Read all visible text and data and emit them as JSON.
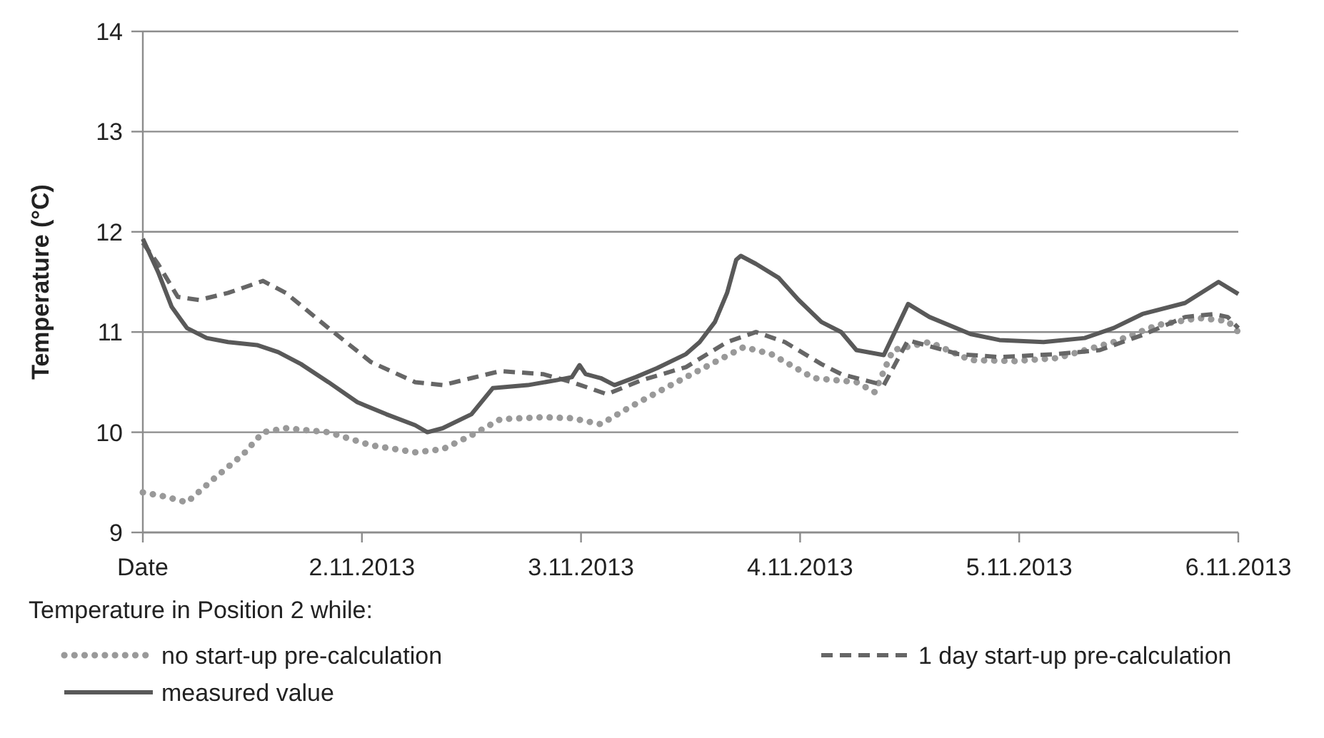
{
  "chart_data": {
    "type": "line",
    "ylabel": "Temperature (°C)",
    "legend_title": "Temperature in Position 2 while:",
    "legend": "bottom",
    "grid": "y",
    "marker": "none",
    "xlim": [
      "2013-11-01",
      "2013-11-06"
    ],
    "xticks": [
      {
        "value": "2013-11-01",
        "label": "Date"
      },
      {
        "value": "2013-11-02",
        "label": "2.11.2013"
      },
      {
        "value": "2013-11-03",
        "label": "3.11.2013"
      },
      {
        "value": "2013-11-04",
        "label": "4.11.2013"
      },
      {
        "value": "2013-11-05",
        "label": "5.11.2013"
      },
      {
        "value": "2013-11-06",
        "label": "6.11.2013"
      }
    ],
    "ylim": [
      9,
      14
    ],
    "yticks": [
      9,
      10,
      11,
      12,
      13,
      14
    ],
    "series": [
      {
        "name": "no start-up pre-calculation",
        "color": "#999999",
        "line_style": "dotted",
        "x": [
          "2013-11-01T00:00",
          "2013-11-01T02:20",
          "2013-11-01T04:50",
          "2013-11-01T07:50",
          "2013-11-01T11:00",
          "2013-11-01T13:10",
          "2013-11-01T15:40",
          "2013-11-01T20:20",
          "2013-11-02T01:00",
          "2013-11-02T05:50",
          "2013-11-02T08:50",
          "2013-11-02T12:00",
          "2013-11-02T15:10",
          "2013-11-02T19:50",
          "2013-11-02T23:00",
          "2013-11-03T02:10",
          "2013-11-03T05:20",
          "2013-11-03T09:50",
          "2013-11-03T14:40",
          "2013-11-03T17:50",
          "2013-11-03T20:50",
          "2013-11-04T01:30",
          "2013-11-04T06:10",
          "2013-11-04T08:10",
          "2013-11-04T10:10",
          "2013-11-04T14:10",
          "2013-11-04T18:40",
          "2013-11-04T23:30",
          "2013-11-05T04:10",
          "2013-11-05T10:20",
          "2013-11-05T15:10",
          "2013-11-05T19:40",
          "2013-11-05T22:50",
          "2013-11-06T00:00"
        ],
        "values": [
          9.4,
          9.36,
          9.3,
          9.54,
          9.78,
          10.0,
          10.04,
          10.0,
          9.87,
          9.8,
          9.83,
          9.97,
          10.13,
          10.15,
          10.14,
          10.08,
          10.25,
          10.47,
          10.7,
          10.85,
          10.78,
          10.54,
          10.5,
          10.4,
          10.82,
          10.9,
          10.72,
          10.71,
          10.74,
          10.9,
          11.07,
          11.14,
          11.11,
          11.0
        ]
      },
      {
        "name": "1 day start-up pre-calculation",
        "color": "#666666",
        "line_style": "dashed",
        "x": [
          "2013-11-01T00:00",
          "2013-11-01T01:40",
          "2013-11-01T03:50",
          "2013-11-01T06:10",
          "2013-11-01T09:20",
          "2013-11-01T13:10",
          "2013-11-01T15:40",
          "2013-11-01T20:20",
          "2013-11-02T01:00",
          "2013-11-02T05:50",
          "2013-11-02T08:50",
          "2013-11-02T12:00",
          "2013-11-02T15:10",
          "2013-11-02T19:50",
          "2013-11-02T23:00",
          "2013-11-03T02:50",
          "2013-11-03T06:40",
          "2013-11-03T11:30",
          "2013-11-03T16:00",
          "2013-11-03T19:10",
          "2013-11-03T22:20",
          "2013-11-04T02:20",
          "2013-11-04T04:30",
          "2013-11-04T09:10",
          "2013-11-04T11:50",
          "2013-11-04T12:30",
          "2013-11-04T17:20",
          "2013-11-04T21:50",
          "2013-11-05T04:10",
          "2013-11-05T08:50",
          "2013-11-05T13:30",
          "2013-11-05T18:10",
          "2013-11-05T21:20",
          "2013-11-05T22:50",
          "2013-11-06T00:00"
        ],
        "values": [
          11.89,
          11.68,
          11.35,
          11.32,
          11.39,
          11.51,
          11.39,
          11.04,
          10.7,
          10.5,
          10.47,
          10.54,
          10.61,
          10.58,
          10.5,
          10.38,
          10.52,
          10.65,
          10.9,
          11.0,
          10.9,
          10.68,
          10.58,
          10.47,
          10.92,
          10.9,
          10.78,
          10.75,
          10.78,
          10.82,
          10.97,
          11.15,
          11.18,
          11.15,
          11.04
        ]
      },
      {
        "name": "measured value",
        "color": "#595959",
        "line_style": "solid",
        "x": [
          "2013-11-01T00:00",
          "2013-11-01T01:40",
          "2013-11-01T03:10",
          "2013-11-01T04:50",
          "2013-11-01T07:00",
          "2013-11-01T09:20",
          "2013-11-01T12:30",
          "2013-11-01T14:50",
          "2013-11-01T17:20",
          "2013-11-01T20:20",
          "2013-11-01T23:30",
          "2013-11-02T02:40",
          "2013-11-02T05:50",
          "2013-11-02T07:10",
          "2013-11-02T08:50",
          "2013-11-02T12:00",
          "2013-11-02T14:20",
          "2013-11-02T18:10",
          "2013-11-02T21:20",
          "2013-11-02T23:00",
          "2013-11-02T23:50",
          "2013-11-03T00:30",
          "2013-11-03T02:10",
          "2013-11-03T03:40",
          "2013-11-03T06:00",
          "2013-11-03T08:20",
          "2013-11-03T11:30",
          "2013-11-03T13:00",
          "2013-11-03T14:40",
          "2013-11-03T16:00",
          "2013-11-03T17:00",
          "2013-11-03T17:30",
          "2013-11-03T19:10",
          "2013-11-03T21:40",
          "2013-11-03T23:50",
          "2013-11-04T02:20",
          "2013-11-04T04:30",
          "2013-11-04T06:10",
          "2013-11-04T09:10",
          "2013-11-04T11:50",
          "2013-11-04T14:10",
          "2013-11-04T18:40",
          "2013-11-04T21:50",
          "2013-11-05T02:40",
          "2013-11-05T07:10",
          "2013-11-05T10:20",
          "2013-11-05T13:30",
          "2013-11-05T18:10",
          "2013-11-05T21:50",
          "2013-11-06T00:00"
        ],
        "values": [
          11.93,
          11.6,
          11.25,
          11.04,
          10.94,
          10.9,
          10.87,
          10.8,
          10.68,
          10.5,
          10.3,
          10.18,
          10.07,
          10.0,
          10.04,
          10.18,
          10.44,
          10.47,
          10.52,
          10.55,
          10.67,
          10.58,
          10.54,
          10.47,
          10.55,
          10.64,
          10.78,
          10.9,
          11.1,
          11.39,
          11.72,
          11.76,
          11.68,
          11.54,
          11.32,
          11.1,
          11.0,
          10.82,
          10.77,
          11.28,
          11.15,
          10.98,
          10.92,
          10.9,
          10.94,
          11.04,
          11.18,
          11.29,
          11.5,
          11.38
        ]
      }
    ]
  }
}
